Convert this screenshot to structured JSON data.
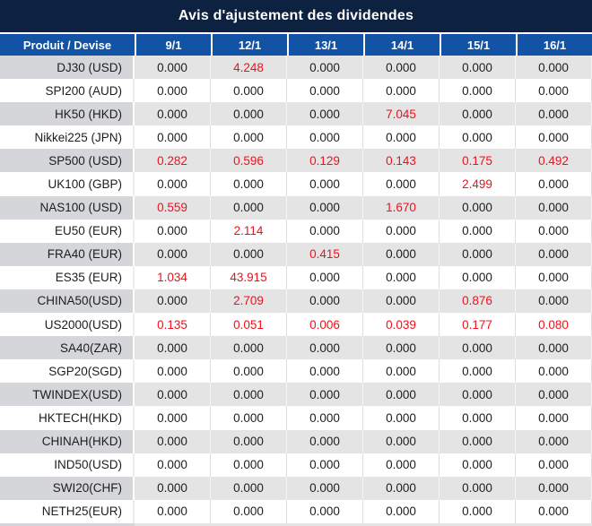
{
  "title": "Avis d'ajustement des dividendes",
  "table": {
    "product_header": "Produit / Devise",
    "date_headers": [
      "9/1",
      "12/1",
      "13/1",
      "14/1",
      "15/1",
      "16/1"
    ],
    "rows": [
      {
        "product": "DJ30 (USD)",
        "values": [
          "0.000",
          "4.248",
          "0.000",
          "0.000",
          "0.000",
          "0.000"
        ],
        "red": [
          false,
          true,
          false,
          false,
          false,
          false
        ]
      },
      {
        "product": "SPI200 (AUD)",
        "values": [
          "0.000",
          "0.000",
          "0.000",
          "0.000",
          "0.000",
          "0.000"
        ],
        "red": [
          false,
          false,
          false,
          false,
          false,
          false
        ]
      },
      {
        "product": "HK50 (HKD)",
        "values": [
          "0.000",
          "0.000",
          "0.000",
          "7.045",
          "0.000",
          "0.000"
        ],
        "red": [
          false,
          false,
          false,
          true,
          false,
          false
        ]
      },
      {
        "product": "Nikkei225 (JPN)",
        "values": [
          "0.000",
          "0.000",
          "0.000",
          "0.000",
          "0.000",
          "0.000"
        ],
        "red": [
          false,
          false,
          false,
          false,
          false,
          false
        ]
      },
      {
        "product": "SP500 (USD)",
        "values": [
          "0.282",
          "0.596",
          "0.129",
          "0.143",
          "0.175",
          "0.492"
        ],
        "red": [
          true,
          true,
          true,
          true,
          true,
          true
        ]
      },
      {
        "product": "UK100 (GBP)",
        "values": [
          "0.000",
          "0.000",
          "0.000",
          "0.000",
          "2.499",
          "0.000"
        ],
        "red": [
          false,
          false,
          false,
          false,
          true,
          false
        ]
      },
      {
        "product": "NAS100 (USD)",
        "values": [
          "0.559",
          "0.000",
          "0.000",
          "1.670",
          "0.000",
          "0.000"
        ],
        "red": [
          true,
          false,
          false,
          true,
          false,
          false
        ]
      },
      {
        "product": "EU50 (EUR)",
        "values": [
          "0.000",
          "2.114",
          "0.000",
          "0.000",
          "0.000",
          "0.000"
        ],
        "red": [
          false,
          true,
          false,
          false,
          false,
          false
        ]
      },
      {
        "product": "FRA40 (EUR)",
        "values": [
          "0.000",
          "0.000",
          "0.415",
          "0.000",
          "0.000",
          "0.000"
        ],
        "red": [
          false,
          false,
          true,
          false,
          false,
          false
        ]
      },
      {
        "product": "ES35 (EUR)",
        "values": [
          "1.034",
          "43.915",
          "0.000",
          "0.000",
          "0.000",
          "0.000"
        ],
        "red": [
          true,
          true,
          false,
          false,
          false,
          false
        ]
      },
      {
        "product": "CHINA50(USD)",
        "values": [
          "0.000",
          "2.709",
          "0.000",
          "0.000",
          "0.876",
          "0.000"
        ],
        "red": [
          false,
          true,
          false,
          false,
          true,
          false
        ]
      },
      {
        "product": "US2000(USD)",
        "values": [
          "0.135",
          "0.051",
          "0.006",
          "0.039",
          "0.177",
          "0.080"
        ],
        "red": [
          true,
          true,
          true,
          true,
          true,
          true
        ]
      },
      {
        "product": "SA40(ZAR)",
        "values": [
          "0.000",
          "0.000",
          "0.000",
          "0.000",
          "0.000",
          "0.000"
        ],
        "red": [
          false,
          false,
          false,
          false,
          false,
          false
        ]
      },
      {
        "product": "SGP20(SGD)",
        "values": [
          "0.000",
          "0.000",
          "0.000",
          "0.000",
          "0.000",
          "0.000"
        ],
        "red": [
          false,
          false,
          false,
          false,
          false,
          false
        ]
      },
      {
        "product": "TWINDEX(USD)",
        "values": [
          "0.000",
          "0.000",
          "0.000",
          "0.000",
          "0.000",
          "0.000"
        ],
        "red": [
          false,
          false,
          false,
          false,
          false,
          false
        ]
      },
      {
        "product": "HKTECH(HKD)",
        "values": [
          "0.000",
          "0.000",
          "0.000",
          "0.000",
          "0.000",
          "0.000"
        ],
        "red": [
          false,
          false,
          false,
          false,
          false,
          false
        ]
      },
      {
        "product": "CHINAH(HKD)",
        "values": [
          "0.000",
          "0.000",
          "0.000",
          "0.000",
          "0.000",
          "0.000"
        ],
        "red": [
          false,
          false,
          false,
          false,
          false,
          false
        ]
      },
      {
        "product": "IND50(USD)",
        "values": [
          "0.000",
          "0.000",
          "0.000",
          "0.000",
          "0.000",
          "0.000"
        ],
        "red": [
          false,
          false,
          false,
          false,
          false,
          false
        ]
      },
      {
        "product": "SWI20(CHF)",
        "values": [
          "0.000",
          "0.000",
          "0.000",
          "0.000",
          "0.000",
          "0.000"
        ],
        "red": [
          false,
          false,
          false,
          false,
          false,
          false
        ]
      },
      {
        "product": "NETH25(EUR)",
        "values": [
          "0.000",
          "0.000",
          "0.000",
          "0.000",
          "0.000",
          "0.000"
        ],
        "red": [
          false,
          false,
          false,
          false,
          false,
          false
        ]
      }
    ]
  },
  "colors": {
    "title_bg": "#0d2140",
    "header_bg": "#1353a6",
    "header_text": "#ffffff",
    "row_gray_bg": "#e4e4e5",
    "row_gray_label_bg": "#d5d6d9",
    "row_white_bg": "#ffffff",
    "value_text": "#1d1d1f",
    "value_highlight_red": "#f0101a"
  }
}
